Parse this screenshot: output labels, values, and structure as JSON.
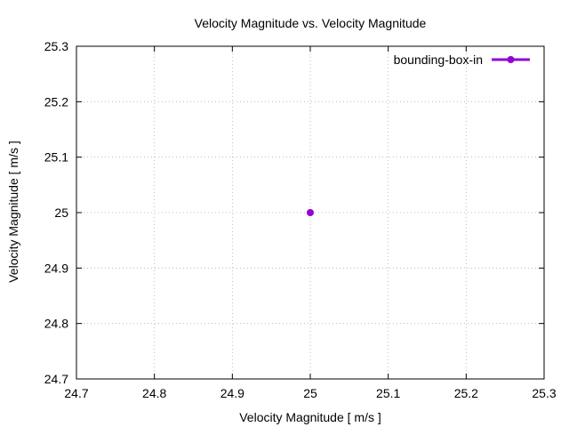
{
  "chart_data": {
    "type": "scatter",
    "title": "Velocity Magnitude vs. Velocity Magnitude",
    "xlabel": "Velocity Magnitude [ m/s ]",
    "ylabel": "Velocity Magnitude [ m/s ]",
    "xlim": [
      24.7,
      25.3
    ],
    "ylim": [
      24.7,
      25.3
    ],
    "xticks": [
      24.7,
      24.8,
      24.9,
      25.0,
      25.1,
      25.2,
      25.3
    ],
    "yticks": [
      24.7,
      24.8,
      24.9,
      25.0,
      25.1,
      25.2,
      25.3
    ],
    "xtick_labels": [
      "24.7",
      "24.8",
      "24.9",
      "25",
      "25.1",
      "25.2",
      "25.3"
    ],
    "ytick_labels": [
      "24.7",
      "24.8",
      "24.9",
      "25",
      "25.1",
      "25.2",
      "25.3"
    ],
    "grid": true,
    "legend_position": "top-right",
    "series": [
      {
        "name": "bounding-box-in",
        "color": "#9400d3",
        "points": [
          {
            "x": 25.0,
            "y": 25.0
          }
        ]
      }
    ]
  }
}
